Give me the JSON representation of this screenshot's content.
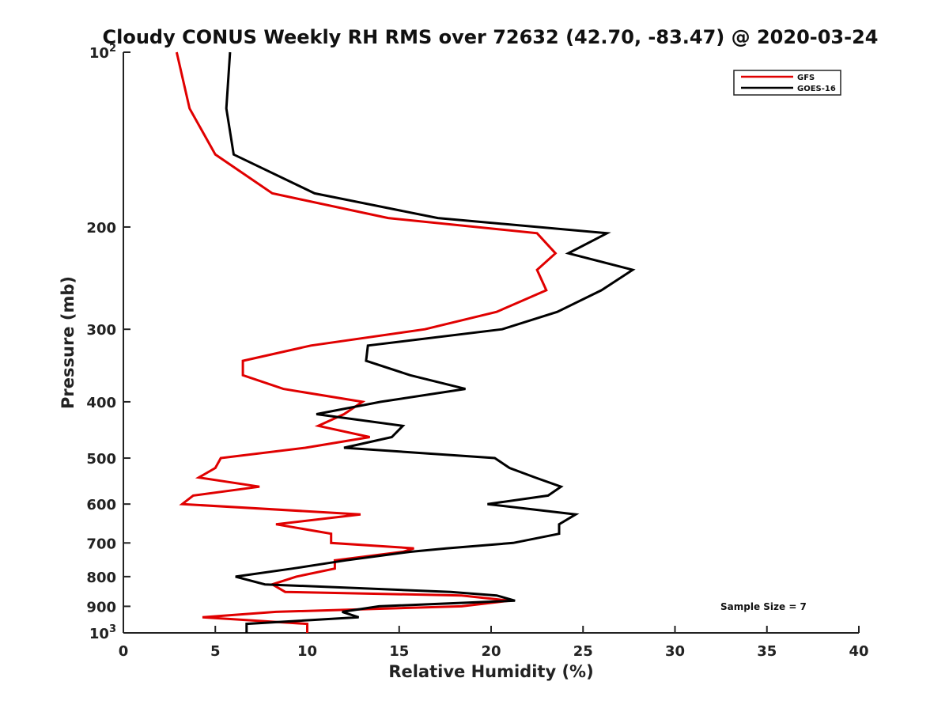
{
  "chart_data": {
    "type": "line",
    "title": "Cloudy CONUS Weekly RH RMS over 72632 (42.70, -83.47) @ 2020-03-24",
    "xlabel": "Relative Humidity (%)",
    "ylabel": "Pressure (mb)",
    "xlim": [
      0,
      40
    ],
    "ylim": [
      100,
      1000
    ],
    "y_scale": "log",
    "y_inverted": true,
    "grid": false,
    "legend_position": "top-right",
    "annotation": "Sample Size = 7",
    "x_ticks": [
      "0",
      "5",
      "10",
      "15",
      "20",
      "25",
      "30",
      "35",
      "40"
    ],
    "y_ticks": [
      {
        "value": 100,
        "base": "10",
        "exp": "2"
      },
      {
        "value": 200,
        "label": "200"
      },
      {
        "value": 300,
        "label": "300"
      },
      {
        "value": 400,
        "label": "400"
      },
      {
        "value": 500,
        "label": "500"
      },
      {
        "value": 600,
        "label": "600"
      },
      {
        "value": 700,
        "label": "700"
      },
      {
        "value": 800,
        "label": "800"
      },
      {
        "value": 900,
        "label": "900"
      },
      {
        "value": 1000,
        "base": "10",
        "exp": "3"
      }
    ],
    "series": [
      {
        "name": "GFS",
        "color": "#e00000",
        "points": [
          [
            2.9,
            100
          ],
          [
            3.6,
            125
          ],
          [
            5.0,
            150
          ],
          [
            8.1,
            175
          ],
          [
            14.4,
            193
          ],
          [
            22.5,
            205
          ],
          [
            23.5,
            222
          ],
          [
            22.5,
            237
          ],
          [
            23.0,
            257
          ],
          [
            20.3,
            280
          ],
          [
            16.4,
            300
          ],
          [
            10.2,
            320
          ],
          [
            6.5,
            340
          ],
          [
            6.5,
            360
          ],
          [
            8.7,
            380
          ],
          [
            13.0,
            400
          ],
          [
            12.0,
            420
          ],
          [
            10.6,
            440
          ],
          [
            13.4,
            460
          ],
          [
            9.9,
            480
          ],
          [
            5.3,
            500
          ],
          [
            5.0,
            520
          ],
          [
            4.1,
            540
          ],
          [
            7.4,
            560
          ],
          [
            3.8,
            580
          ],
          [
            3.2,
            600
          ],
          [
            12.9,
            625
          ],
          [
            8.3,
            650
          ],
          [
            11.3,
            675
          ],
          [
            11.3,
            700
          ],
          [
            15.8,
            715
          ],
          [
            15.2,
            725
          ],
          [
            11.5,
            750
          ],
          [
            11.5,
            775
          ],
          [
            9.4,
            800
          ],
          [
            8.1,
            825
          ],
          [
            8.8,
            850
          ],
          [
            18.4,
            862
          ],
          [
            21.0,
            880
          ],
          [
            18.4,
            900
          ],
          [
            8.3,
            920
          ],
          [
            4.3,
            940
          ],
          [
            10.0,
            965
          ],
          [
            10.0,
            1000
          ]
        ]
      },
      {
        "name": "GOES-16",
        "color": "#000000",
        "points": [
          [
            5.8,
            100
          ],
          [
            5.6,
            125
          ],
          [
            6.0,
            150
          ],
          [
            10.4,
            175
          ],
          [
            17.1,
            193
          ],
          [
            26.3,
            205
          ],
          [
            24.2,
            222
          ],
          [
            27.7,
            237
          ],
          [
            26.0,
            257
          ],
          [
            23.6,
            280
          ],
          [
            20.6,
            300
          ],
          [
            13.3,
            320
          ],
          [
            13.2,
            340
          ],
          [
            15.6,
            360
          ],
          [
            18.6,
            380
          ],
          [
            14.0,
            400
          ],
          [
            10.5,
            420
          ],
          [
            15.2,
            440
          ],
          [
            14.6,
            460
          ],
          [
            12.0,
            480
          ],
          [
            20.2,
            500
          ],
          [
            21.0,
            520
          ],
          [
            22.4,
            540
          ],
          [
            23.8,
            560
          ],
          [
            23.1,
            580
          ],
          [
            19.8,
            600
          ],
          [
            24.6,
            625
          ],
          [
            23.7,
            650
          ],
          [
            23.7,
            675
          ],
          [
            21.2,
            700
          ],
          [
            17.6,
            715
          ],
          [
            15.6,
            725
          ],
          [
            12.1,
            750
          ],
          [
            9.2,
            775
          ],
          [
            6.1,
            800
          ],
          [
            7.7,
            825
          ],
          [
            17.8,
            850
          ],
          [
            20.3,
            862
          ],
          [
            21.3,
            880
          ],
          [
            13.9,
            900
          ],
          [
            11.9,
            920
          ],
          [
            12.8,
            940
          ],
          [
            6.7,
            965
          ],
          [
            6.7,
            1000
          ]
        ]
      }
    ]
  }
}
